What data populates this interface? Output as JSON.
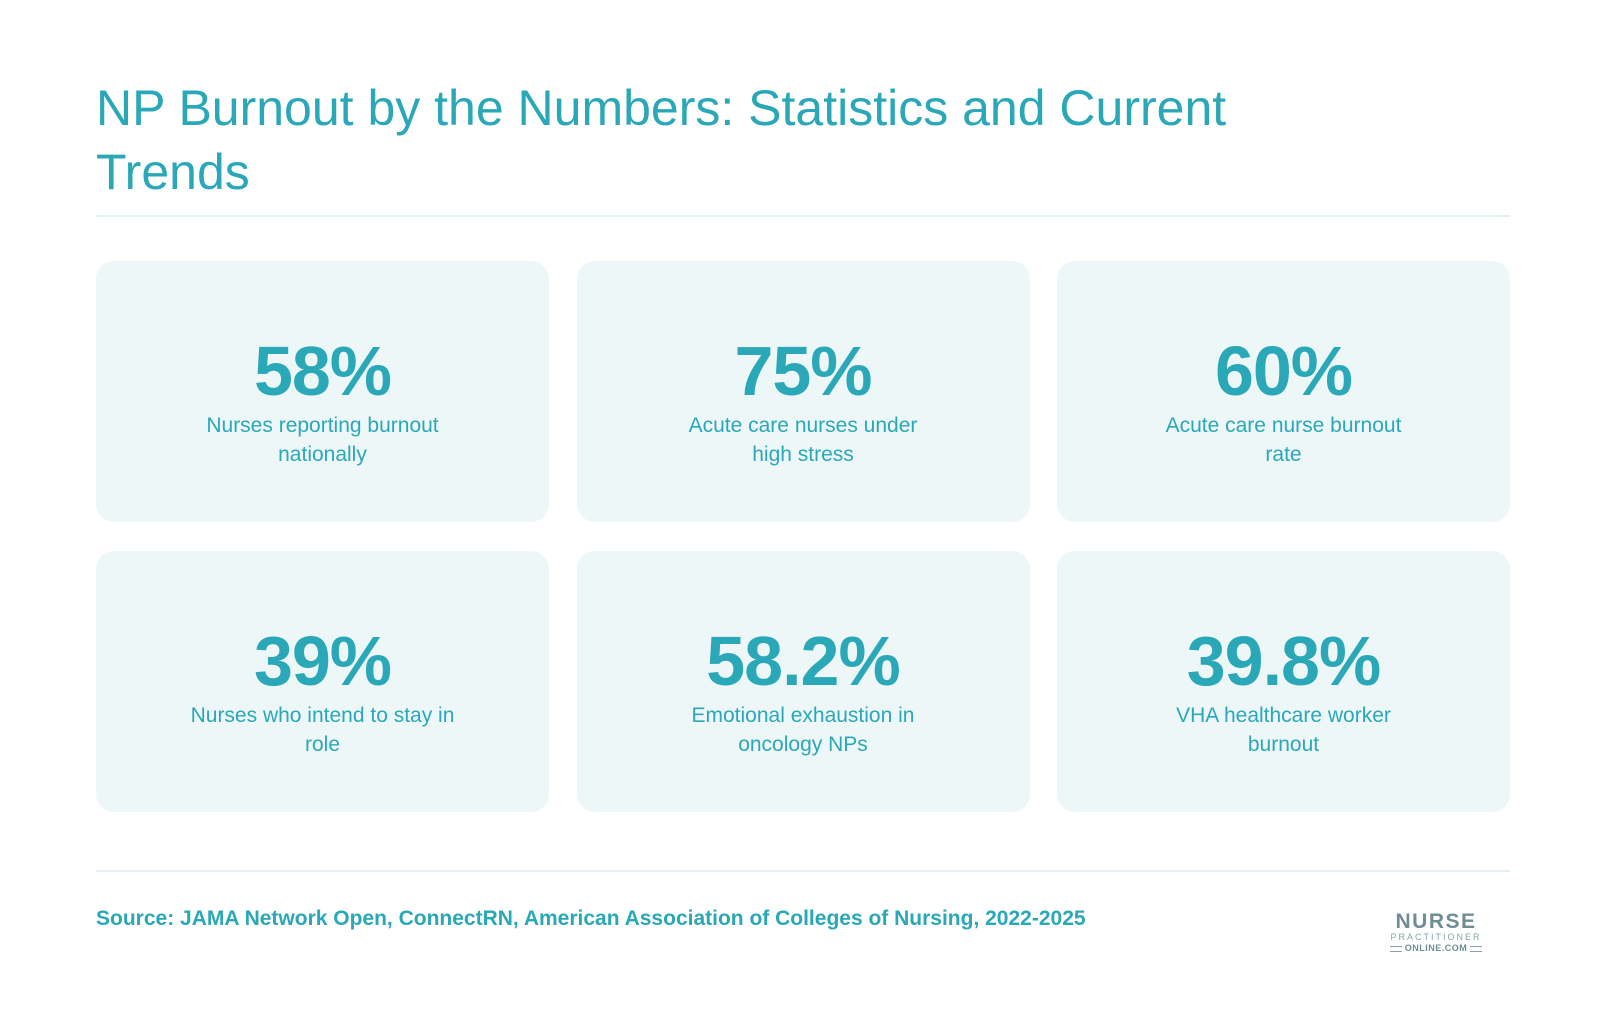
{
  "header": {
    "title": "NP Burnout by the Numbers: Statistics and Current Trends"
  },
  "stats": [
    {
      "value": "58%",
      "label": "Nurses reporting burnout nationally"
    },
    {
      "value": "75%",
      "label": "Acute care nurses under high stress"
    },
    {
      "value": "60%",
      "label": "Acute care nurse burnout rate"
    },
    {
      "value": "39%",
      "label": "Nurses who intend to stay in role"
    },
    {
      "value": "58.2%",
      "label": "Emotional exhaustion in oncology NPs"
    },
    {
      "value": "39.8%",
      "label": "VHA healthcare worker burnout"
    }
  ],
  "footer": {
    "source": "Source: JAMA Network Open, ConnectRN, American Association of Colleges of Nursing, 2022-2025"
  },
  "logo": {
    "main": "NURSE",
    "sub": "PRACTITIONER",
    "domain": "ONLINE.COM"
  },
  "colors": {
    "accent": "#2aa8b8",
    "card_background": "#edf7f8",
    "divider": "#e3f1f3",
    "logo": "#6f8d96"
  }
}
